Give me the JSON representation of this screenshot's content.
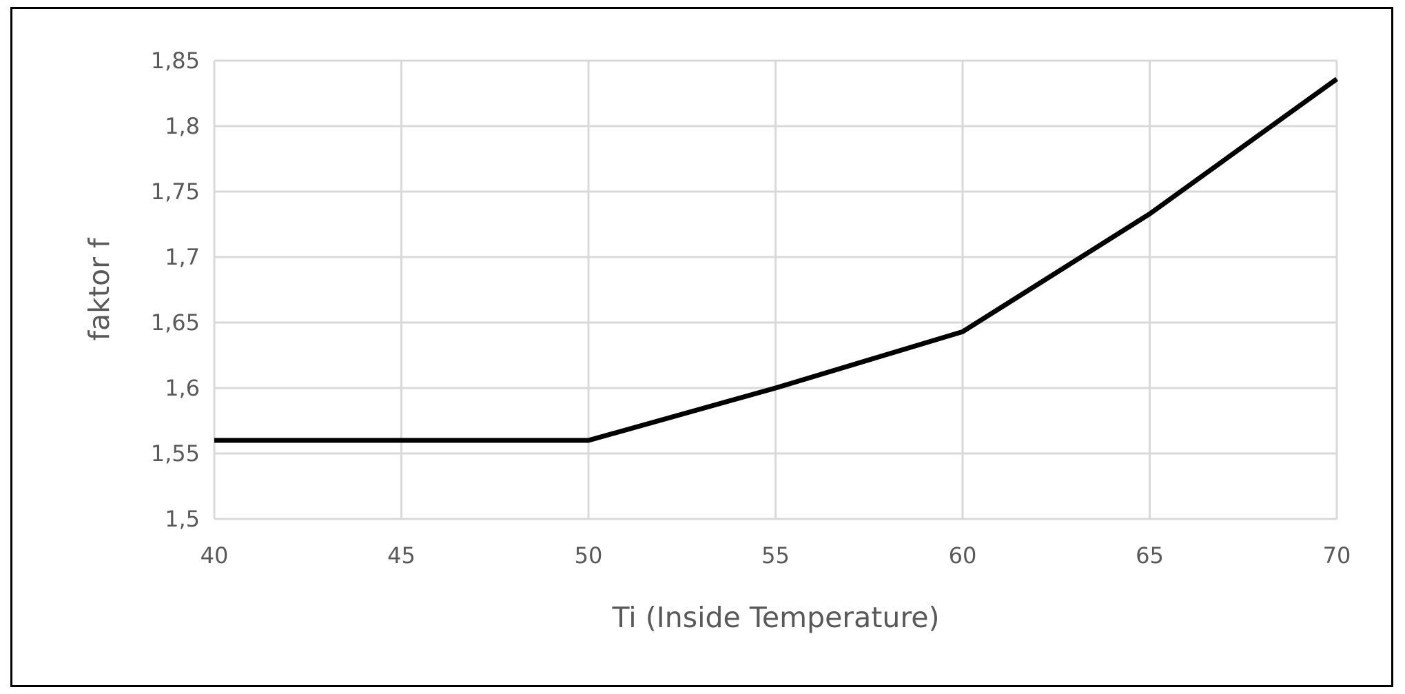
{
  "chart_data": {
    "type": "line",
    "title": "",
    "xlabel": "Ti (Inside Temperature)",
    "ylabel": "faktor f",
    "xlim": [
      40,
      70
    ],
    "ylim": [
      1.5,
      1.85
    ],
    "x_ticks": [
      "40",
      "45",
      "50",
      "55",
      "60",
      "65",
      "70"
    ],
    "y_ticks": [
      "1,5",
      "1,55",
      "1,6",
      "1,65",
      "1,7",
      "1,75",
      "1,8",
      "1,85"
    ],
    "grid": true,
    "legend": "none",
    "series": [
      {
        "x": [
          40,
          45,
          50,
          55,
          60,
          65,
          70
        ],
        "y": [
          1.56,
          1.56,
          1.56,
          1.6,
          1.643,
          1.733,
          1.836
        ],
        "color": "#000000"
      }
    ]
  }
}
